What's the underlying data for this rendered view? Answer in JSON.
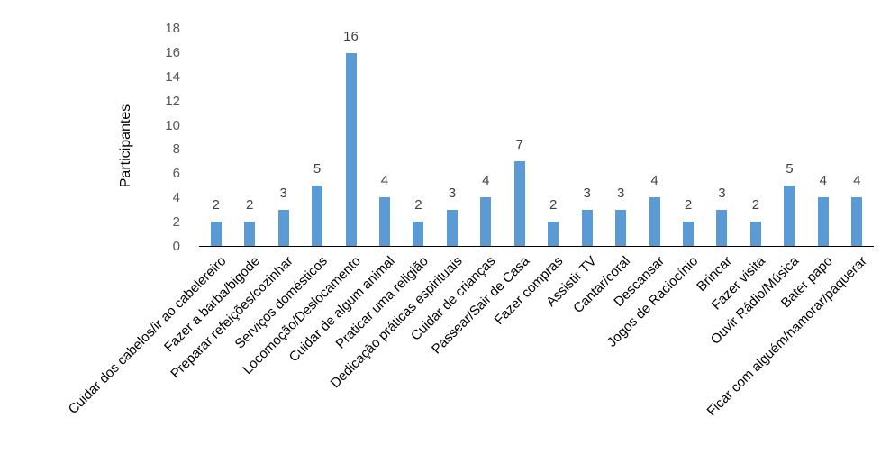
{
  "chart_data": {
    "type": "bar",
    "title": "",
    "xlabel": "",
    "ylabel": "Participantes",
    "ylim": [
      0,
      18
    ],
    "yticks": [
      0,
      2,
      4,
      6,
      8,
      10,
      12,
      14,
      16,
      18
    ],
    "grid": false,
    "legend_position": "none",
    "bar_color": "#5B9BD5",
    "categories": [
      "Cuidar dos cabelos/ir ao cabelereiro",
      "Fazer a barba/bigode",
      "Preparar refeições/cozinhar",
      "Serviços domésticos",
      "Locomoção/Deslocamento",
      "Cuidar de algum animal",
      "Praticar uma religião",
      "Dedicação práticas espirituais",
      "Cuidar de crianças",
      "Passear/Sair de Casa",
      "Fazer compras",
      "Assistir TV",
      "Cantar/coral",
      "Descansar",
      "Jogos de Raciocínio",
      "Brincar",
      "Fazer visita",
      "Ouvir Rádio/Música",
      "Bater papo",
      "Ficar com alguém/namorar/paquerar"
    ],
    "values": [
      2,
      2,
      3,
      5,
      16,
      4,
      2,
      3,
      4,
      7,
      2,
      3,
      3,
      4,
      2,
      3,
      2,
      5,
      4,
      4
    ]
  },
  "colors": {
    "bar": "#5B9BD5",
    "axis_line": "#000000",
    "tick_label": "#595959",
    "value_label": "#404040",
    "category_label": "#000000",
    "background": "#FFFFFF"
  }
}
